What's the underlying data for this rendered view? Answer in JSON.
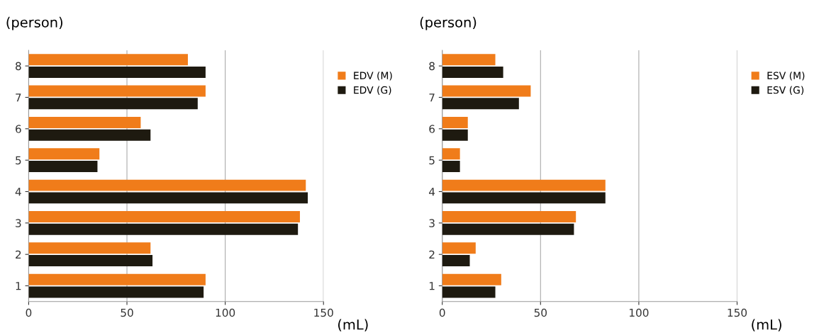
{
  "chart_data": [
    {
      "type": "bar",
      "orientation": "horizontal",
      "ylabel": "(person)",
      "xlabel": "(mL)",
      "categories": [
        "8",
        "7",
        "6",
        "5",
        "4",
        "3",
        "2",
        "1"
      ],
      "xlim": [
        0,
        150
      ],
      "xticks": [
        0,
        50,
        100,
        150
      ],
      "grid": "x",
      "legend": "top right",
      "series": [
        {
          "name": "EDV (M)",
          "color": "#f07c1a",
          "values": [
            81,
            90,
            57,
            36,
            141,
            138,
            62,
            90
          ]
        },
        {
          "name": "EDV (G)",
          "color": "#1e1a10",
          "values": [
            90,
            86,
            62,
            35,
            142,
            137,
            63,
            89
          ]
        }
      ]
    },
    {
      "type": "bar",
      "orientation": "horizontal",
      "ylabel": "(person)",
      "xlabel": "(mL)",
      "categories": [
        "8",
        "7",
        "6",
        "5",
        "4",
        "3",
        "2",
        "1"
      ],
      "xlim": [
        0,
        150
      ],
      "xticks": [
        0,
        50,
        100,
        150
      ],
      "grid": "x",
      "legend": "top right",
      "series": [
        {
          "name": "ESV (M)",
          "color": "#f07c1a",
          "values": [
            27,
            45,
            13,
            9,
            83,
            68,
            17,
            30
          ]
        },
        {
          "name": "ESV (G)",
          "color": "#1e1a10",
          "values": [
            31,
            39,
            13,
            9,
            83,
            67,
            14,
            27
          ]
        }
      ]
    }
  ]
}
